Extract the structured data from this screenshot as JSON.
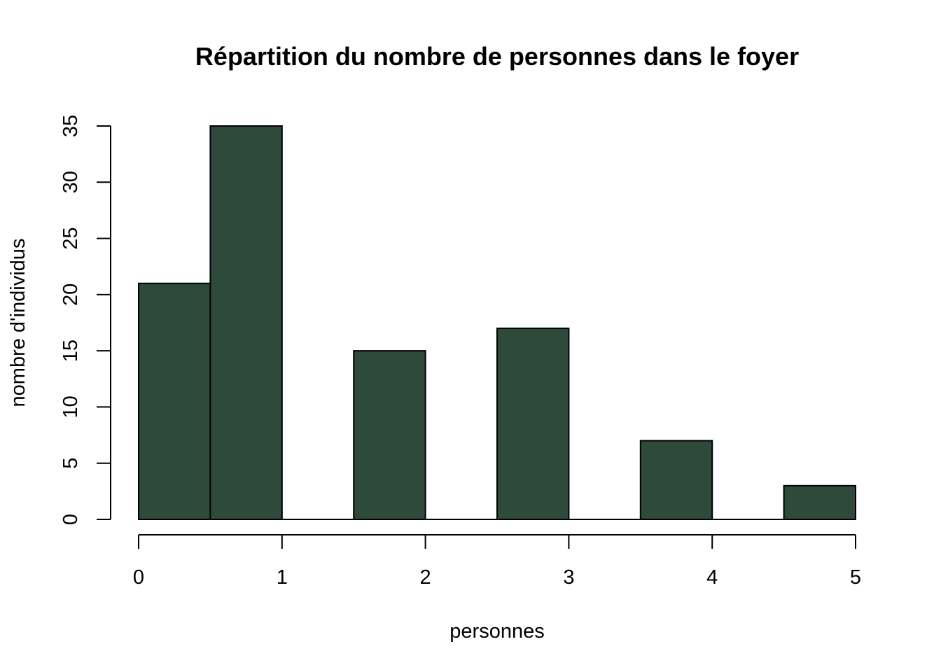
{
  "chart_data": {
    "type": "bar",
    "title": "Répartition du nombre de personnes dans le foyer",
    "xlabel": "personnes",
    "ylabel": "nombre d'individus",
    "bins": [
      {
        "x0": 0.0,
        "x1": 0.5,
        "value": 21
      },
      {
        "x0": 0.5,
        "x1": 1.0,
        "value": 35
      },
      {
        "x0": 1.0,
        "x1": 1.5,
        "value": 0
      },
      {
        "x0": 1.5,
        "x1": 2.0,
        "value": 15
      },
      {
        "x0": 2.0,
        "x1": 2.5,
        "value": 0
      },
      {
        "x0": 2.5,
        "x1": 3.0,
        "value": 17
      },
      {
        "x0": 3.0,
        "x1": 3.5,
        "value": 0
      },
      {
        "x0": 3.5,
        "x1": 4.0,
        "value": 7
      },
      {
        "x0": 4.0,
        "x1": 4.5,
        "value": 0
      },
      {
        "x0": 4.5,
        "x1": 5.0,
        "value": 3
      }
    ],
    "xlim": [
      0,
      5
    ],
    "ylim": [
      0,
      35
    ],
    "xticks": [
      "0",
      "1",
      "2",
      "3",
      "4",
      "5"
    ],
    "yticks": [
      "0",
      "5",
      "10",
      "15",
      "20",
      "25",
      "30",
      "35"
    ],
    "bar_color": "#2e4a3a",
    "grid": false
  }
}
